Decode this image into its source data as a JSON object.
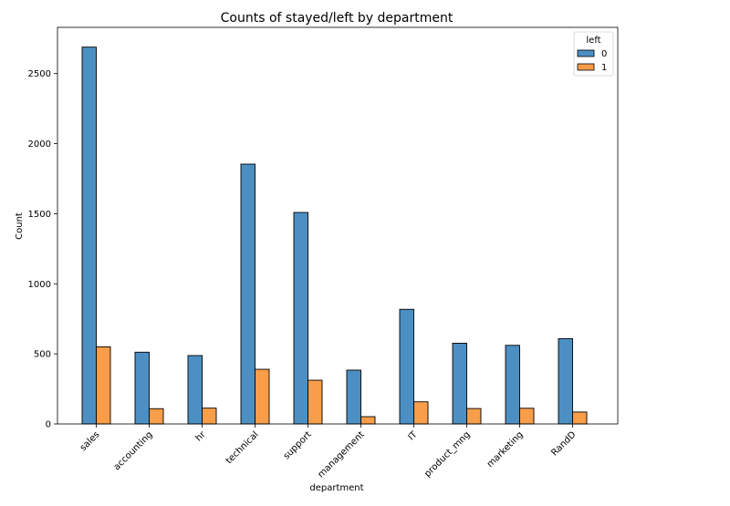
{
  "chart_data": {
    "type": "bar",
    "title": "Counts of stayed/left by department",
    "xlabel": "department",
    "ylabel": "Count",
    "categories": [
      "sales",
      "accounting",
      "hr",
      "technical",
      "support",
      "management",
      "IT",
      "product_mng",
      "marketing",
      "RandD"
    ],
    "series": [
      {
        "name": "0",
        "color": "#4c8fc3",
        "values": [
          2689,
          512,
          488,
          1854,
          1509,
          384,
          818,
          576,
          561,
          609
        ]
      },
      {
        "name": "1",
        "color": "#f89d4a",
        "values": [
          550,
          109,
          113,
          390,
          312,
          52,
          158,
          110,
          112,
          85
        ]
      }
    ],
    "ylim": [
      0,
      2830
    ],
    "yticks": [
      0,
      500,
      1000,
      1500,
      2000,
      2500
    ],
    "legend": {
      "title": "left",
      "position": "top-right"
    },
    "grid": false
  }
}
